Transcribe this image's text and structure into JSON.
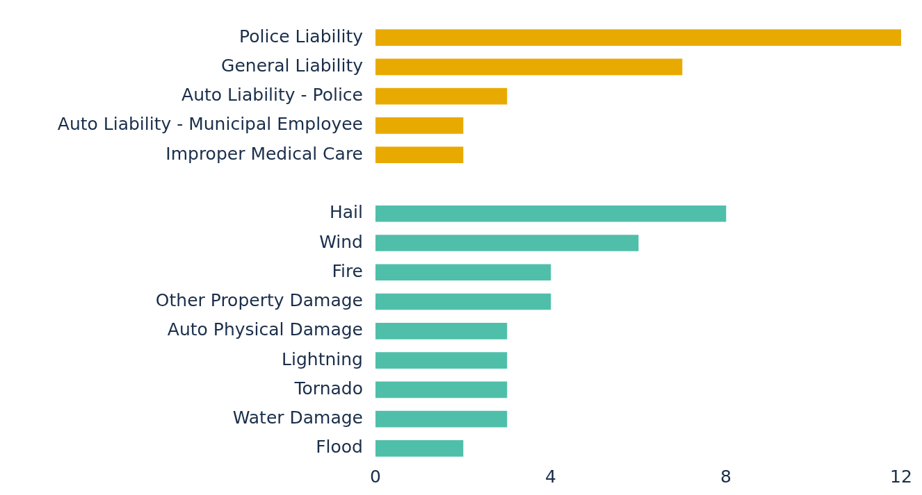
{
  "chart_data": {
    "type": "bar",
    "orientation": "horizontal",
    "categories": [
      "Police Liability",
      "General Liability",
      "Auto Liability - Police",
      "Auto Liability - Municipal Employee",
      "Improper Medical Care",
      null,
      "Hail",
      "Wind",
      "Fire",
      "Other Property Damage",
      "Auto Physical Damage",
      "Lightning",
      "Tornado",
      "Water Damage",
      "Flood"
    ],
    "values": [
      12,
      7,
      3,
      2,
      2,
      null,
      8,
      6,
      4,
      4,
      3,
      3,
      3,
      3,
      2
    ],
    "colors": [
      "#e8aa00",
      "#e8aa00",
      "#e8aa00",
      "#e8aa00",
      "#e8aa00",
      "#e8aa00",
      "#4fbfaa",
      "#4fbfaa",
      "#4fbfaa",
      "#4fbfaa",
      "#4fbfaa",
      "#4fbfaa",
      "#4fbfaa",
      "#4fbfaa",
      "#4fbfaa"
    ],
    "xlim": [
      0,
      12
    ],
    "xticks": [
      0,
      4,
      8,
      12
    ],
    "grid": false,
    "legend": false
  }
}
